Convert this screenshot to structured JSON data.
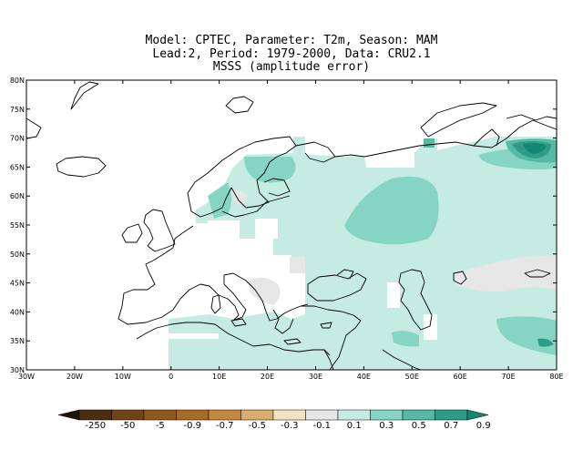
{
  "title": {
    "line1": "Model: CPTEC, Parameter: T2m, Season: MAM",
    "line2": "Lead:2, Period: 1979-2000, Data: CRU2.1",
    "line3": "MSSS (amplitude error)"
  },
  "map": {
    "lat_labels": [
      "80N",
      "75N",
      "70N",
      "65N",
      "60N",
      "55N",
      "50N",
      "45N",
      "40N",
      "35N",
      "30N"
    ],
    "lon_labels": [
      "30W",
      "20W",
      "10W",
      "0",
      "10E",
      "20E",
      "30E",
      "40E",
      "50E",
      "60E",
      "70E",
      "80E"
    ],
    "lat_range": [
      30,
      80
    ],
    "lon_range": [
      -30,
      80
    ]
  },
  "legend": {
    "labels": [
      "-250",
      "-50",
      "-5",
      "-0.9",
      "-0.7",
      "-0.5",
      "-0.3",
      "-0.1",
      "0.1",
      "0.3",
      "0.5",
      "0.7",
      "0.9"
    ],
    "colors": [
      "#1e1409",
      "#4a2e10",
      "#6e4418",
      "#8f5a1d",
      "#a86b25",
      "#c2883e",
      "#d9ad6e",
      "#f2e2c0",
      "#e6e6e6",
      "#c6ebe3",
      "#86d4c4",
      "#55b9a6",
      "#2f9c88",
      "#128773"
    ],
    "lowest_color": "#1e1409",
    "highest_color": "#128773"
  }
}
